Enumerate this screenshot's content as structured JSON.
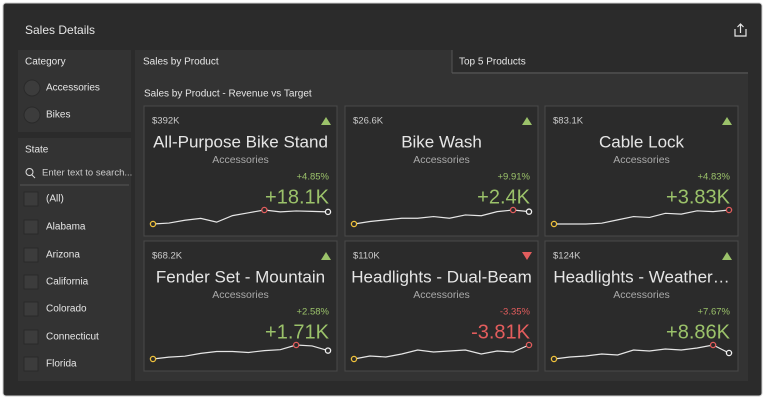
{
  "header": {
    "title": "Sales Details"
  },
  "category_filter": {
    "label": "Category",
    "options": [
      "Accessories",
      "Bikes"
    ]
  },
  "state_filter": {
    "label": "State",
    "search_placeholder": "Enter text to search...",
    "options": [
      "(All)",
      "Alabama",
      "Arizona",
      "California",
      "Colorado",
      "Connecticut",
      "Florida"
    ]
  },
  "tabs": [
    "Sales by Product",
    "Top 5 Products"
  ],
  "panel_title": "Sales by Product - Revenue vs Target",
  "cards": [
    {
      "target": "$392K",
      "name": "All-Purpose Bike Stand",
      "category": "Accessories",
      "delta": "+4.85%",
      "value": "+18.1K",
      "indicator": "up",
      "sparkline": [
        12,
        14,
        20,
        24,
        16,
        30,
        36,
        42,
        38,
        40,
        39,
        38
      ]
    },
    {
      "target": "$26.6K",
      "name": "Bike Wash",
      "category": "Accessories",
      "delta": "+9.91%",
      "value": "+2.4K",
      "indicator": "up",
      "sparkline": [
        15,
        18,
        20,
        22,
        22,
        24,
        22,
        26,
        25,
        30,
        32,
        30
      ]
    },
    {
      "target": "$83.1K",
      "name": "Cable Lock",
      "category": "Accessories",
      "delta": "+4.83%",
      "value": "+3.83K",
      "indicator": "up",
      "sparkline": [
        0,
        0,
        0,
        2,
        10,
        18,
        16,
        26,
        24,
        32,
        30,
        34
      ]
    },
    {
      "target": "$68.2K",
      "name": "Fender Set - Mountain",
      "category": "Accessories",
      "delta": "+2.58%",
      "value": "+1.71K",
      "indicator": "up",
      "sparkline": [
        10,
        14,
        16,
        22,
        26,
        26,
        24,
        28,
        30,
        40,
        38,
        28
      ]
    },
    {
      "target": "$110K",
      "name": "Headlights - Dual-Beam",
      "category": "Accessories",
      "delta": "-3.35%",
      "value": "-3.81K",
      "indicator": "down",
      "sparkline": [
        10,
        16,
        14,
        20,
        28,
        24,
        26,
        28,
        20,
        26,
        24,
        38
      ]
    },
    {
      "target": "$124K",
      "name": "Headlights - Weather…",
      "category": "Accessories",
      "delta": "+7.67%",
      "value": "+8.86K",
      "indicator": "up",
      "sparkline": [
        10,
        14,
        16,
        20,
        18,
        28,
        26,
        30,
        28,
        32,
        38,
        22
      ]
    }
  ]
}
